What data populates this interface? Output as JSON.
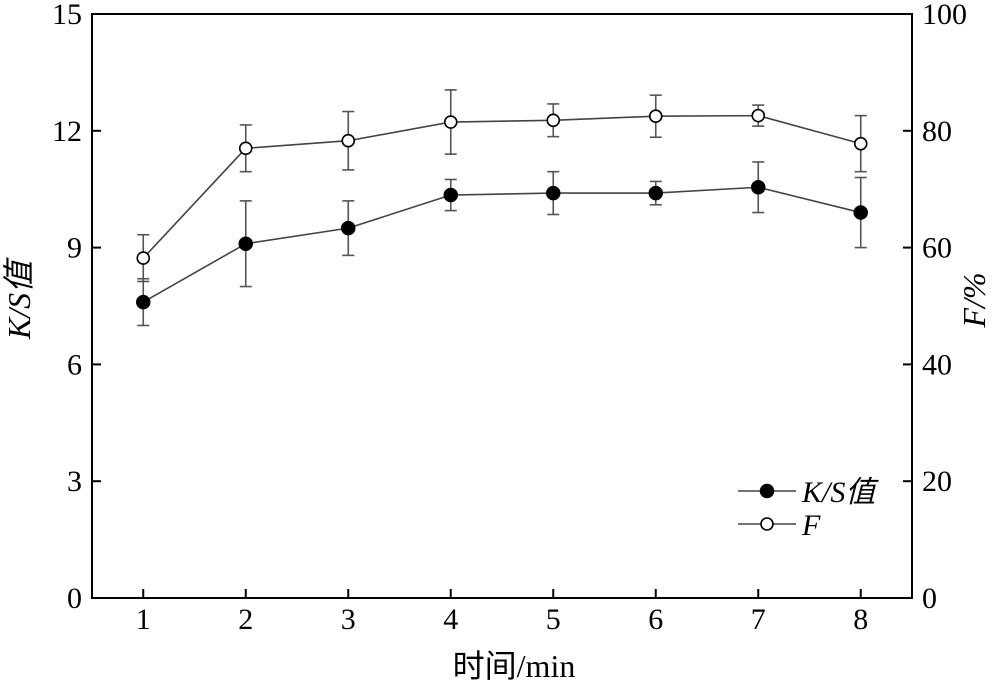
{
  "chart_data": {
    "type": "line",
    "xlabel": "时间/min",
    "ylabel_left": "K/S值",
    "ylabel_right": "F/%",
    "x": [
      1,
      2,
      3,
      4,
      5,
      6,
      7,
      8
    ],
    "x_ticks": [
      "1",
      "2",
      "3",
      "4",
      "5",
      "6",
      "7",
      "8"
    ],
    "y_left_lim": [
      0,
      15
    ],
    "y_left_ticks": [
      "0",
      "3",
      "6",
      "9",
      "12",
      "15"
    ],
    "y_right_lim": [
      0,
      100
    ],
    "y_right_ticks": [
      "0",
      "20",
      "40",
      "60",
      "80",
      "100"
    ],
    "grid": false,
    "legend_position": "bottom-right",
    "series": [
      {
        "name": "K/S值",
        "axis": "left",
        "marker": "filled-circle",
        "values": [
          7.6,
          9.1,
          9.5,
          10.35,
          10.4,
          10.4,
          10.55,
          9.9
        ],
        "errors": [
          0.6,
          1.1,
          0.7,
          0.4,
          0.55,
          0.3,
          0.65,
          0.9
        ]
      },
      {
        "name": "F",
        "axis": "right",
        "marker": "open-circle",
        "values": [
          58.2,
          77.0,
          78.3,
          81.5,
          81.8,
          82.5,
          82.6,
          77.8
        ],
        "errors": [
          4.0,
          4.0,
          5.0,
          5.5,
          2.8,
          3.6,
          1.8,
          4.8
        ]
      }
    ],
    "legend": [
      {
        "label": "K/S值",
        "marker": "filled-circle"
      },
      {
        "label": "F",
        "marker": "open-circle"
      }
    ]
  }
}
